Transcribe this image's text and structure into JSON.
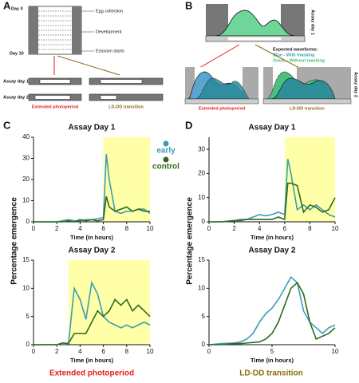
{
  "schematics": {
    "A": {
      "letter": "A",
      "day0": "Day 0",
      "day10": "Day 10",
      "egg": "Egg collection",
      "development": "Development",
      "eclosion": "Eclosion starts",
      "assay1": "Assay day 1",
      "assay2": "Assay day 2",
      "left_caption": "Extended photoperiod",
      "right_caption": "LD-DD transition"
    },
    "B": {
      "letter": "B",
      "assay1": "Assay day 1",
      "assay2": "Assay day 2",
      "legend_title": "Expected waveforms:",
      "blue": "Blue - With masking",
      "green": "Green - Without masking",
      "left_caption": "Extended photoperiod",
      "right_caption": "LD-DD transition"
    }
  },
  "panels": {
    "C": {
      "letter": "C",
      "caption": "Extended photoperiod"
    },
    "D": {
      "letter": "D",
      "caption": "LD-DD transition"
    }
  },
  "chart_data": [
    {
      "type": "line",
      "title": "Assay Day 1",
      "x_label": "Time (in hours)",
      "y_label": "Percentage emergence",
      "legend": "right",
      "shade": [
        6,
        10
      ],
      "shade_color": "#ffffa8",
      "x": [
        0,
        1,
        2,
        2.5,
        3,
        3.5,
        4,
        4.5,
        5,
        5.5,
        6,
        6.25,
        6.5,
        7,
        7.5,
        8,
        8.5,
        9,
        9.5,
        10
      ],
      "xlim": [
        0,
        10
      ],
      "xticks": [
        0,
        2,
        4,
        6,
        8,
        10
      ],
      "ylim": [
        0,
        40
      ],
      "yticks": [
        0,
        10,
        20,
        30,
        40
      ],
      "series": [
        {
          "name": "early",
          "color": "#3a9cb8",
          "values": [
            0,
            0,
            0,
            0.5,
            1,
            0.5,
            0.5,
            1,
            1,
            1.5,
            2,
            32,
            20,
            5,
            4,
            5,
            5,
            6,
            6,
            4
          ]
        },
        {
          "name": "control",
          "color": "#2d6a1c",
          "values": [
            0,
            0,
            0,
            0,
            0.5,
            0,
            1,
            0.5,
            1,
            0.5,
            1,
            12,
            7,
            5,
            6,
            7,
            5,
            6,
            5,
            5
          ]
        }
      ]
    },
    {
      "type": "line",
      "title": "Assay Day 2",
      "x_label": "Time (in hours)",
      "shade": [
        3,
        10
      ],
      "shade_color": "#ffffa8",
      "x": [
        0,
        1,
        2,
        2.5,
        3,
        3.5,
        4,
        4.5,
        5,
        5.5,
        6,
        6.5,
        7,
        7.5,
        8,
        8.5,
        9,
        9.5,
        10
      ],
      "xlim": [
        0,
        10
      ],
      "xticks": [
        0,
        2,
        4,
        6,
        8,
        10
      ],
      "ylim": [
        0,
        15
      ],
      "yticks": [
        0,
        5,
        10,
        15
      ],
      "series": [
        {
          "color": "#3a9cb8",
          "values": [
            0,
            0,
            0,
            0.3,
            0.2,
            10,
            8,
            4.5,
            11,
            9,
            5,
            4,
            3.5,
            3,
            3.5,
            3,
            3.5,
            4,
            3.5
          ]
        },
        {
          "color": "#2d6a1c",
          "values": [
            0,
            0,
            0,
            0.3,
            0.2,
            2,
            2,
            2,
            4,
            6,
            5,
            6,
            8,
            7,
            8,
            6,
            7,
            6,
            5
          ]
        }
      ]
    },
    {
      "type": "line",
      "title": "Assay Day 1",
      "x_label": "Time (in hours)",
      "y_label": "Percentage emergence",
      "shade": [
        6,
        10
      ],
      "shade_color": "#ffffa8",
      "x": [
        0,
        1,
        2,
        2.5,
        3,
        3.5,
        4,
        4.5,
        5,
        5.5,
        6,
        6.25,
        6.5,
        7,
        7.5,
        8,
        8.5,
        9,
        9.5,
        10
      ],
      "xlim": [
        0,
        10
      ],
      "xticks": [
        0,
        2,
        4,
        6,
        8,
        10
      ],
      "ylim": [
        0,
        35
      ],
      "yticks": [
        0,
        10,
        20,
        30
      ],
      "series": [
        {
          "color": "#3a9cb8",
          "values": [
            0,
            0,
            0.5,
            1,
            1,
            2,
            3,
            2.5,
            3,
            4,
            3,
            26,
            20,
            5,
            7,
            5,
            7,
            5,
            3,
            2
          ]
        },
        {
          "color": "#2d6a1c",
          "values": [
            0,
            0,
            0.5,
            0.5,
            1,
            1,
            1,
            1,
            1,
            2,
            1,
            16,
            16,
            15,
            4,
            7,
            6,
            4,
            5,
            10
          ]
        }
      ]
    },
    {
      "type": "line",
      "title": "Assay Day 2",
      "x_label": "Time (in hours)",
      "x": [
        0,
        1,
        2,
        2.5,
        3,
        3.5,
        4,
        4.5,
        5,
        5.5,
        6,
        6.5,
        7,
        7.5,
        8,
        8.5,
        9,
        9.5,
        10
      ],
      "xlim": [
        0,
        10
      ],
      "xticks": [
        0,
        5,
        10
      ],
      "ylim": [
        0,
        15
      ],
      "yticks": [
        0,
        5,
        10,
        15
      ],
      "series": [
        {
          "color": "#3a9cb8",
          "values": [
            0,
            0.2,
            0.3,
            0.5,
            1,
            2,
            4,
            5.5,
            6.5,
            8,
            10,
            12,
            11,
            6,
            4,
            3,
            2,
            3,
            3.5
          ]
        },
        {
          "color": "#2d6a1c",
          "values": [
            0,
            0,
            0.2,
            0.2,
            0.3,
            0.4,
            0.5,
            1,
            2,
            4,
            7,
            10,
            11,
            9,
            4,
            1,
            1.5,
            2,
            3
          ]
        }
      ]
    }
  ]
}
